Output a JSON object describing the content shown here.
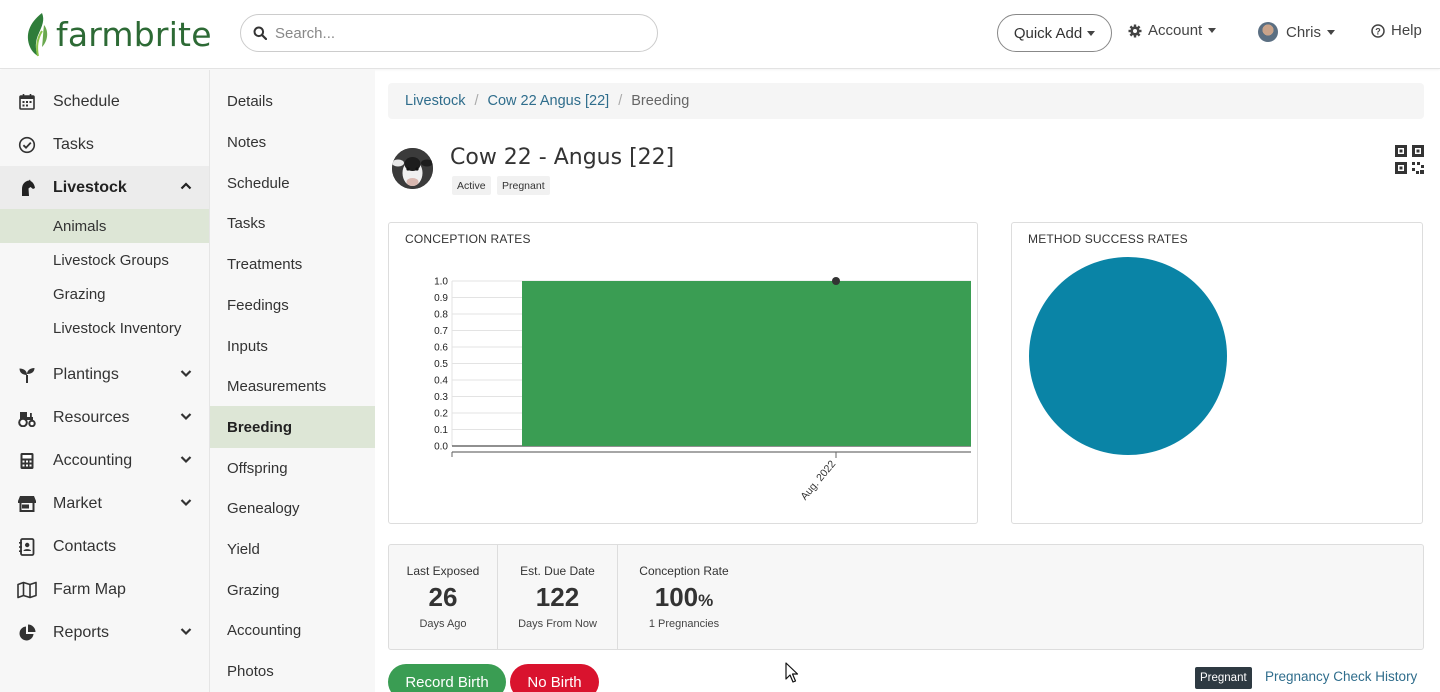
{
  "brand": {
    "name": "farmbrite",
    "color": "#2d6a35"
  },
  "header": {
    "search_placeholder": "Search...",
    "quick_add": "Quick Add",
    "account": "Account",
    "user": "Chris",
    "help": "Help"
  },
  "sidebar": {
    "items": [
      {
        "label": "Schedule",
        "icon": "calendar-icon"
      },
      {
        "label": "Tasks",
        "icon": "check-circle-icon"
      },
      {
        "label": "Livestock",
        "icon": "horse-icon",
        "expanded": true
      },
      {
        "label": "Plantings",
        "icon": "seedling-icon"
      },
      {
        "label": "Resources",
        "icon": "tractor-icon"
      },
      {
        "label": "Accounting",
        "icon": "calculator-icon"
      },
      {
        "label": "Market",
        "icon": "store-icon"
      },
      {
        "label": "Contacts",
        "icon": "address-book-icon"
      },
      {
        "label": "Farm Map",
        "icon": "map-icon"
      },
      {
        "label": "Reports",
        "icon": "pie-chart-icon"
      }
    ],
    "livestock_sub": [
      "Animals",
      "Livestock Groups",
      "Grazing",
      "Livestock Inventory"
    ]
  },
  "subnav": {
    "items": [
      "Details",
      "Notes",
      "Schedule",
      "Tasks",
      "Treatments",
      "Feedings",
      "Inputs",
      "Measurements",
      "Breeding",
      "Offspring",
      "Genealogy",
      "Yield",
      "Grazing",
      "Accounting",
      "Photos"
    ],
    "active": "Breeding"
  },
  "breadcrumb": {
    "level1": "Livestock",
    "level2": "Cow 22 Angus [22]",
    "current": "Breeding"
  },
  "animal": {
    "title": "Cow 22 - Angus [22]",
    "tags": [
      "Active",
      "Pregnant"
    ]
  },
  "conception_panel_title": "CONCEPTION RATES",
  "method_panel_title": "METHOD SUCCESS RATES",
  "chart_data": [
    {
      "type": "bar",
      "title": "CONCEPTION RATES",
      "categories": [
        "Aug. 2022"
      ],
      "values": [
        1.0
      ],
      "point": {
        "x": "Aug. 2022",
        "y": 1.0
      },
      "yticks": [
        "1.0",
        "0.9",
        "0.8",
        "0.7",
        "0.6",
        "0.5",
        "0.4",
        "0.3",
        "0.2",
        "0.1",
        "0.0"
      ],
      "ylim": [
        0,
        1.0
      ],
      "color": "#3a9d53"
    },
    {
      "type": "pie",
      "title": "METHOD SUCCESS RATES",
      "values": [
        1
      ],
      "colors": [
        "#0a84a6"
      ]
    }
  ],
  "stats": [
    {
      "label": "Last Exposed",
      "value": "26",
      "unit": "",
      "sub": "Days Ago"
    },
    {
      "label": "Est. Due Date",
      "value": "122",
      "unit": "",
      "sub": "Days From Now"
    },
    {
      "label": "Conception Rate",
      "value": "100",
      "unit": "%",
      "sub": "1 Pregnancies"
    }
  ],
  "actions": {
    "record_birth": "Record Birth",
    "no_birth": "No Birth"
  },
  "status_badge": "Pregnant",
  "pregnancy_history_link": "Pregnancy Check History",
  "colors": {
    "accent_green": "#3a9d53",
    "danger_red": "#d9132e",
    "link_blue": "#2f6d8c",
    "pie_blue": "#0a84a6"
  }
}
